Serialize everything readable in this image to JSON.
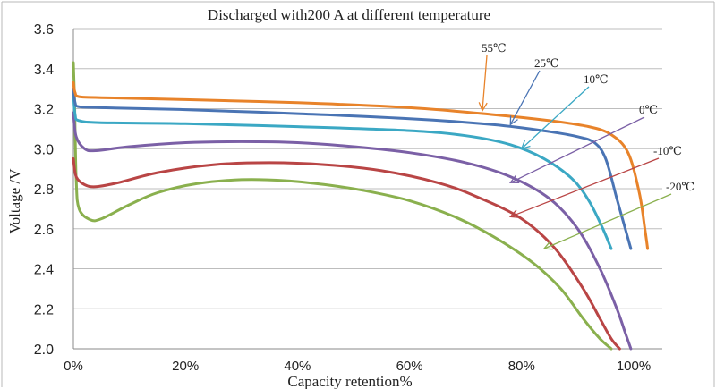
{
  "chart_data": {
    "type": "line",
    "title": "Discharged with200 A at different temperature",
    "xlabel": "Capacity retention%",
    "ylabel": "Voltage /V",
    "xlim": [
      0,
      100
    ],
    "ylim": [
      2.0,
      3.6
    ],
    "x_ticks": [
      "0%",
      "20%",
      "40%",
      "60%",
      "80%",
      "100%"
    ],
    "y_ticks": [
      "2.0",
      "2.2",
      "2.4",
      "2.6",
      "2.8",
      "3.0",
      "3.2",
      "3.4",
      "3.6"
    ],
    "grid": "horizontal",
    "series": [
      {
        "name": "55℃",
        "color": "#e8832a",
        "label_pos": [
          73,
          3.19
        ],
        "points": [
          [
            0,
            3.33
          ],
          [
            0.3,
            3.28
          ],
          [
            1,
            3.26
          ],
          [
            5,
            3.255
          ],
          [
            20,
            3.245
          ],
          [
            40,
            3.23
          ],
          [
            60,
            3.205
          ],
          [
            75,
            3.17
          ],
          [
            85,
            3.14
          ],
          [
            92,
            3.11
          ],
          [
            96,
            3.07
          ],
          [
            99,
            2.98
          ],
          [
            101,
            2.78
          ],
          [
            102,
            2.6
          ],
          [
            102.5,
            2.5
          ]
        ]
      },
      {
        "name": "25℃",
        "color": "#4a74b4",
        "label_pos": [
          78,
          3.12
        ],
        "points": [
          [
            0,
            3.3
          ],
          [
            0.3,
            3.23
          ],
          [
            1,
            3.21
          ],
          [
            5,
            3.205
          ],
          [
            20,
            3.195
          ],
          [
            40,
            3.175
          ],
          [
            60,
            3.15
          ],
          [
            75,
            3.12
          ],
          [
            85,
            3.085
          ],
          [
            90,
            3.06
          ],
          [
            93,
            3.03
          ],
          [
            95,
            2.95
          ],
          [
            97,
            2.75
          ],
          [
            98.5,
            2.6
          ],
          [
            99.5,
            2.5
          ]
        ]
      },
      {
        "name": "10℃",
        "color": "#3ba8c4",
        "label_pos": [
          80,
          3.0
        ],
        "points": [
          [
            0,
            3.28
          ],
          [
            0.3,
            3.17
          ],
          [
            1,
            3.14
          ],
          [
            5,
            3.13
          ],
          [
            20,
            3.125
          ],
          [
            40,
            3.11
          ],
          [
            60,
            3.09
          ],
          [
            70,
            3.065
          ],
          [
            78,
            3.02
          ],
          [
            84,
            2.95
          ],
          [
            89,
            2.85
          ],
          [
            92,
            2.74
          ],
          [
            94.5,
            2.6
          ],
          [
            96,
            2.5
          ]
        ]
      },
      {
        "name": "0℃",
        "color": "#7b60a6",
        "label_pos": [
          78,
          2.83
        ],
        "points": [
          [
            0,
            3.18
          ],
          [
            0.5,
            3.06
          ],
          [
            2,
            3.0
          ],
          [
            4,
            2.99
          ],
          [
            10,
            3.01
          ],
          [
            20,
            3.03
          ],
          [
            30,
            3.035
          ],
          [
            40,
            3.03
          ],
          [
            50,
            3.01
          ],
          [
            60,
            2.98
          ],
          [
            70,
            2.93
          ],
          [
            78,
            2.86
          ],
          [
            85,
            2.75
          ],
          [
            90,
            2.6
          ],
          [
            94,
            2.4
          ],
          [
            97,
            2.2
          ],
          [
            98.5,
            2.08
          ],
          [
            99.5,
            2.0
          ]
        ]
      },
      {
        "name": "-10℃",
        "color": "#b94545",
        "label_pos": [
          78,
          2.66
        ],
        "points": [
          [
            0,
            2.95
          ],
          [
            0.5,
            2.86
          ],
          [
            2,
            2.82
          ],
          [
            4,
            2.81
          ],
          [
            8,
            2.83
          ],
          [
            15,
            2.88
          ],
          [
            25,
            2.92
          ],
          [
            35,
            2.93
          ],
          [
            45,
            2.92
          ],
          [
            55,
            2.89
          ],
          [
            65,
            2.83
          ],
          [
            72,
            2.76
          ],
          [
            80,
            2.65
          ],
          [
            86,
            2.5
          ],
          [
            91,
            2.3
          ],
          [
            94,
            2.15
          ],
          [
            96,
            2.05
          ],
          [
            97.5,
            2.0
          ]
        ]
      },
      {
        "name": "-20℃",
        "color": "#8ab04e",
        "label_pos": [
          84,
          2.5
        ],
        "points": [
          [
            0,
            3.43
          ],
          [
            0.2,
            3.25
          ],
          [
            0.5,
            2.85
          ],
          [
            1,
            2.7
          ],
          [
            3,
            2.645
          ],
          [
            5,
            2.65
          ],
          [
            10,
            2.72
          ],
          [
            15,
            2.78
          ],
          [
            22,
            2.825
          ],
          [
            30,
            2.845
          ],
          [
            38,
            2.84
          ],
          [
            45,
            2.82
          ],
          [
            52,
            2.79
          ],
          [
            60,
            2.74
          ],
          [
            68,
            2.66
          ],
          [
            75,
            2.56
          ],
          [
            82,
            2.43
          ],
          [
            87,
            2.3
          ],
          [
            91,
            2.15
          ],
          [
            94,
            2.05
          ],
          [
            96,
            2.0
          ]
        ]
      }
    ]
  }
}
